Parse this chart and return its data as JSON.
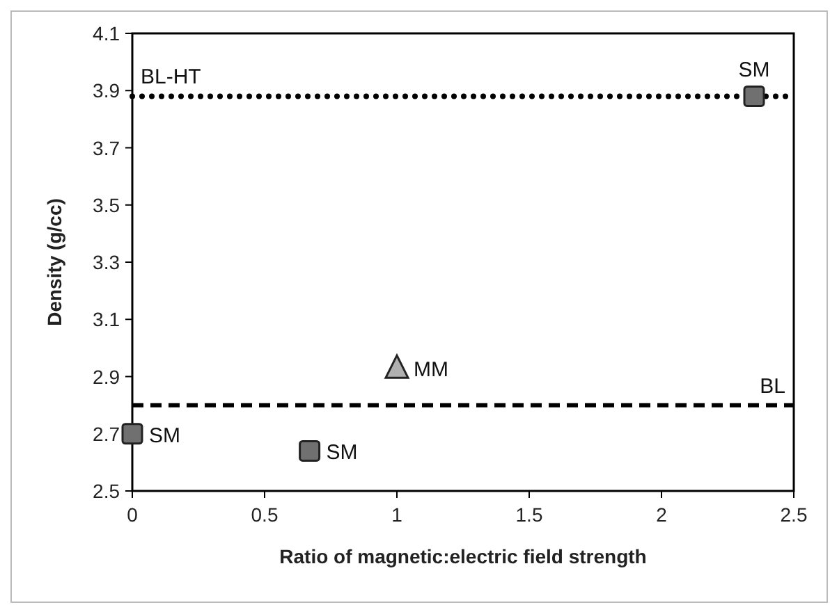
{
  "chart_data": {
    "type": "scatter",
    "xlabel": "Ratio of magnetic:electric field strength",
    "ylabel": "Density (g/cc)",
    "xlim": [
      0,
      2.5
    ],
    "xticks": [
      0,
      0.5,
      1,
      1.5,
      2,
      2.5
    ],
    "ylim": [
      2.5,
      4.1
    ],
    "yticks": [
      2.5,
      2.7,
      2.9,
      3.1,
      3.3,
      3.5,
      3.7,
      3.9,
      4.1
    ],
    "grid": false,
    "series": [
      {
        "color": "#707070",
        "marker": "square",
        "x": [
          0,
          0.67,
          2.35
        ],
        "values": [
          2.7,
          2.64,
          3.88
        ]
      },
      {
        "color": "#b0b0b0",
        "marker": "triangle",
        "x": [
          1.0
        ],
        "values": [
          2.93
        ]
      }
    ],
    "ref_lines": [
      {
        "axis": "y",
        "value": 3.88,
        "label": "BL-HT",
        "line_style": "dotted",
        "color": "#000000"
      },
      {
        "axis": "y",
        "value": 2.8,
        "label": "BL",
        "line_style": "dashed",
        "color": "#000000"
      }
    ],
    "annotations": [
      {
        "text": "SM",
        "x": 0,
        "y": 2.7
      },
      {
        "text": "SM",
        "x": 0.67,
        "y": 2.64
      },
      {
        "text": "MM",
        "x": 1.0,
        "y": 2.93
      },
      {
        "text": "SM",
        "x": 2.35,
        "y": 3.88
      }
    ]
  }
}
